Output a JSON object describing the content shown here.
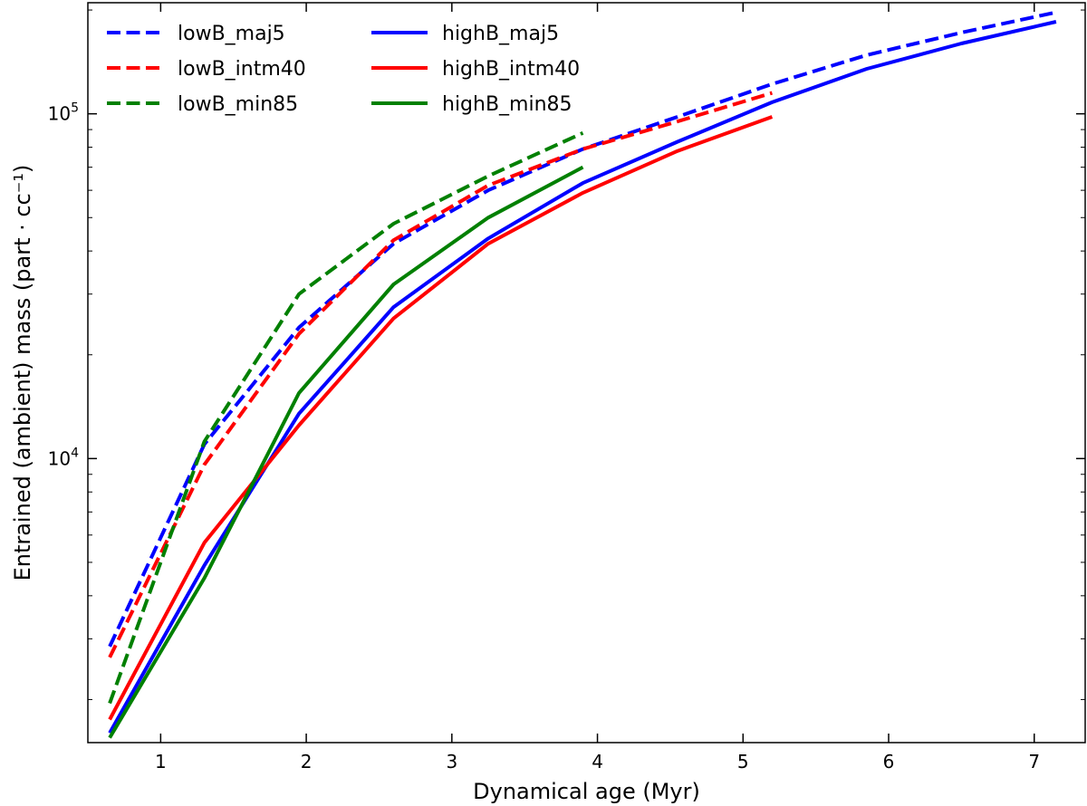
{
  "chart_data": {
    "type": "line",
    "xlabel": "Dynamical age (Myr)",
    "ylabel": "Entrained (ambient) mass (part · cc⁻¹)",
    "xlim": [
      0.5,
      7.35
    ],
    "ylim": [
      1500,
      210000
    ],
    "yscale": "log",
    "xticks": [
      1,
      2,
      3,
      4,
      5,
      6,
      7
    ],
    "xtick_labels": [
      "1",
      "2",
      "3",
      "4",
      "5",
      "6",
      "7"
    ],
    "yticks_major": [
      10000,
      100000
    ],
    "ytick_labels": [
      {
        "base": "10",
        "exp": "4"
      },
      {
        "base": "10",
        "exp": "5"
      }
    ],
    "grid": false,
    "legend": {
      "position": "top-left",
      "columns": 2
    },
    "series": [
      {
        "name": "lowB_maj5",
        "color": "#0000ff",
        "dash": "dashed",
        "x": [
          0.65,
          1.3,
          1.95,
          2.6,
          3.25,
          3.9,
          4.55,
          5.2,
          5.85,
          6.5,
          7.15
        ],
        "y": [
          2850,
          11000,
          24000,
          42000,
          60000,
          79000,
          98000,
          122000,
          148000,
          172000,
          197000
        ]
      },
      {
        "name": "lowB_intm40",
        "color": "#ff0000",
        "dash": "dashed",
        "x": [
          0.65,
          1.3,
          1.95,
          2.6,
          3.25,
          3.9,
          4.55,
          5.2
        ],
        "y": [
          2650,
          9600,
          23000,
          43000,
          62000,
          79000,
          95000,
          115000
        ]
      },
      {
        "name": "lowB_min85",
        "color": "#008000",
        "dash": "dashed",
        "x": [
          0.65,
          1.3,
          1.95,
          2.6,
          3.25,
          3.9
        ],
        "y": [
          1950,
          11200,
          30000,
          48000,
          66000,
          88000
        ]
      },
      {
        "name": "highB_maj5",
        "color": "#0000ff",
        "dash": "solid",
        "x": [
          0.65,
          1.3,
          1.95,
          2.6,
          3.25,
          3.9,
          4.55,
          5.2,
          5.85,
          6.5,
          7.15
        ],
        "y": [
          1600,
          4900,
          13500,
          27500,
          43500,
          63000,
          83000,
          108000,
          135000,
          160000,
          185000
        ]
      },
      {
        "name": "highB_intm40",
        "color": "#ff0000",
        "dash": "solid",
        "x": [
          0.65,
          1.3,
          1.95,
          2.6,
          3.25,
          3.9,
          4.55,
          5.2
        ],
        "y": [
          1750,
          5700,
          12500,
          25500,
          42000,
          59000,
          78000,
          98000
        ]
      },
      {
        "name": "highB_min85",
        "color": "#008000",
        "dash": "solid",
        "x": [
          0.65,
          1.3,
          1.95,
          2.6,
          3.25,
          3.9
        ],
        "y": [
          1550,
          4500,
          15500,
          32000,
          50000,
          70000
        ]
      }
    ]
  }
}
